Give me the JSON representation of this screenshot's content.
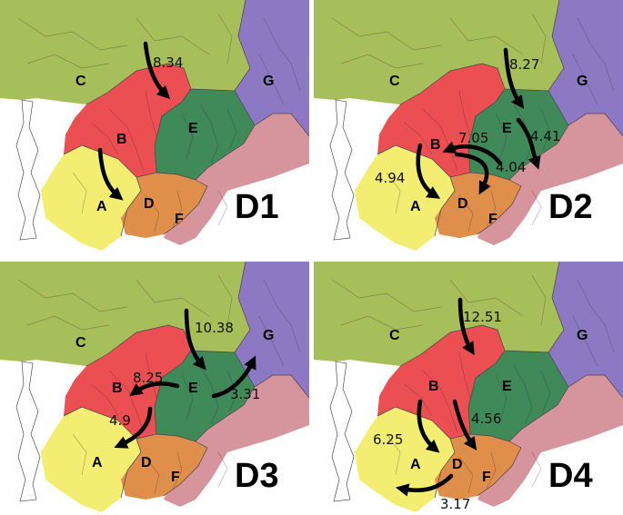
{
  "colors": {
    "A": "#f3ee72",
    "B": "#ec4f51",
    "C": "#a6bf5a",
    "D": "#e08f4a",
    "E": "#3f8a58",
    "F": "#d6949c",
    "G": "#8d79c3",
    "land_outline": "#ffffff"
  },
  "region_labels": [
    "A",
    "B",
    "C",
    "D",
    "E",
    "F",
    "G"
  ],
  "panels": [
    {
      "label": "D1",
      "flows": [
        {
          "from": "north",
          "to": "B",
          "value": "8.34"
        },
        {
          "from": "B",
          "to": "A",
          "value": ""
        }
      ]
    },
    {
      "label": "D2",
      "flows": [
        {
          "from": "north",
          "to": "E",
          "value": "8.27"
        },
        {
          "from": "E",
          "to": "F",
          "value": "4.41"
        },
        {
          "from": "E",
          "to": "B",
          "value": "7.05"
        },
        {
          "from": "B",
          "to": "D",
          "value": "4.04"
        },
        {
          "from": "B",
          "to": "A",
          "value": "4.94"
        }
      ]
    },
    {
      "label": "D3",
      "flows": [
        {
          "from": "north",
          "to": "E",
          "value": "10.38"
        },
        {
          "from": "E",
          "to": "B",
          "value": "8.25"
        },
        {
          "from": "E",
          "to": "G",
          "value": "3.31"
        },
        {
          "from": "E",
          "to": "A",
          "value": "4.9"
        }
      ]
    },
    {
      "label": "D4",
      "flows": [
        {
          "from": "north",
          "to": "B",
          "value": "12.51"
        },
        {
          "from": "B",
          "to": "A",
          "value": "6.25"
        },
        {
          "from": "B",
          "to": "D",
          "value": "4.56"
        },
        {
          "from": "D",
          "to": "south-west",
          "value": "3.17"
        }
      ]
    }
  ]
}
